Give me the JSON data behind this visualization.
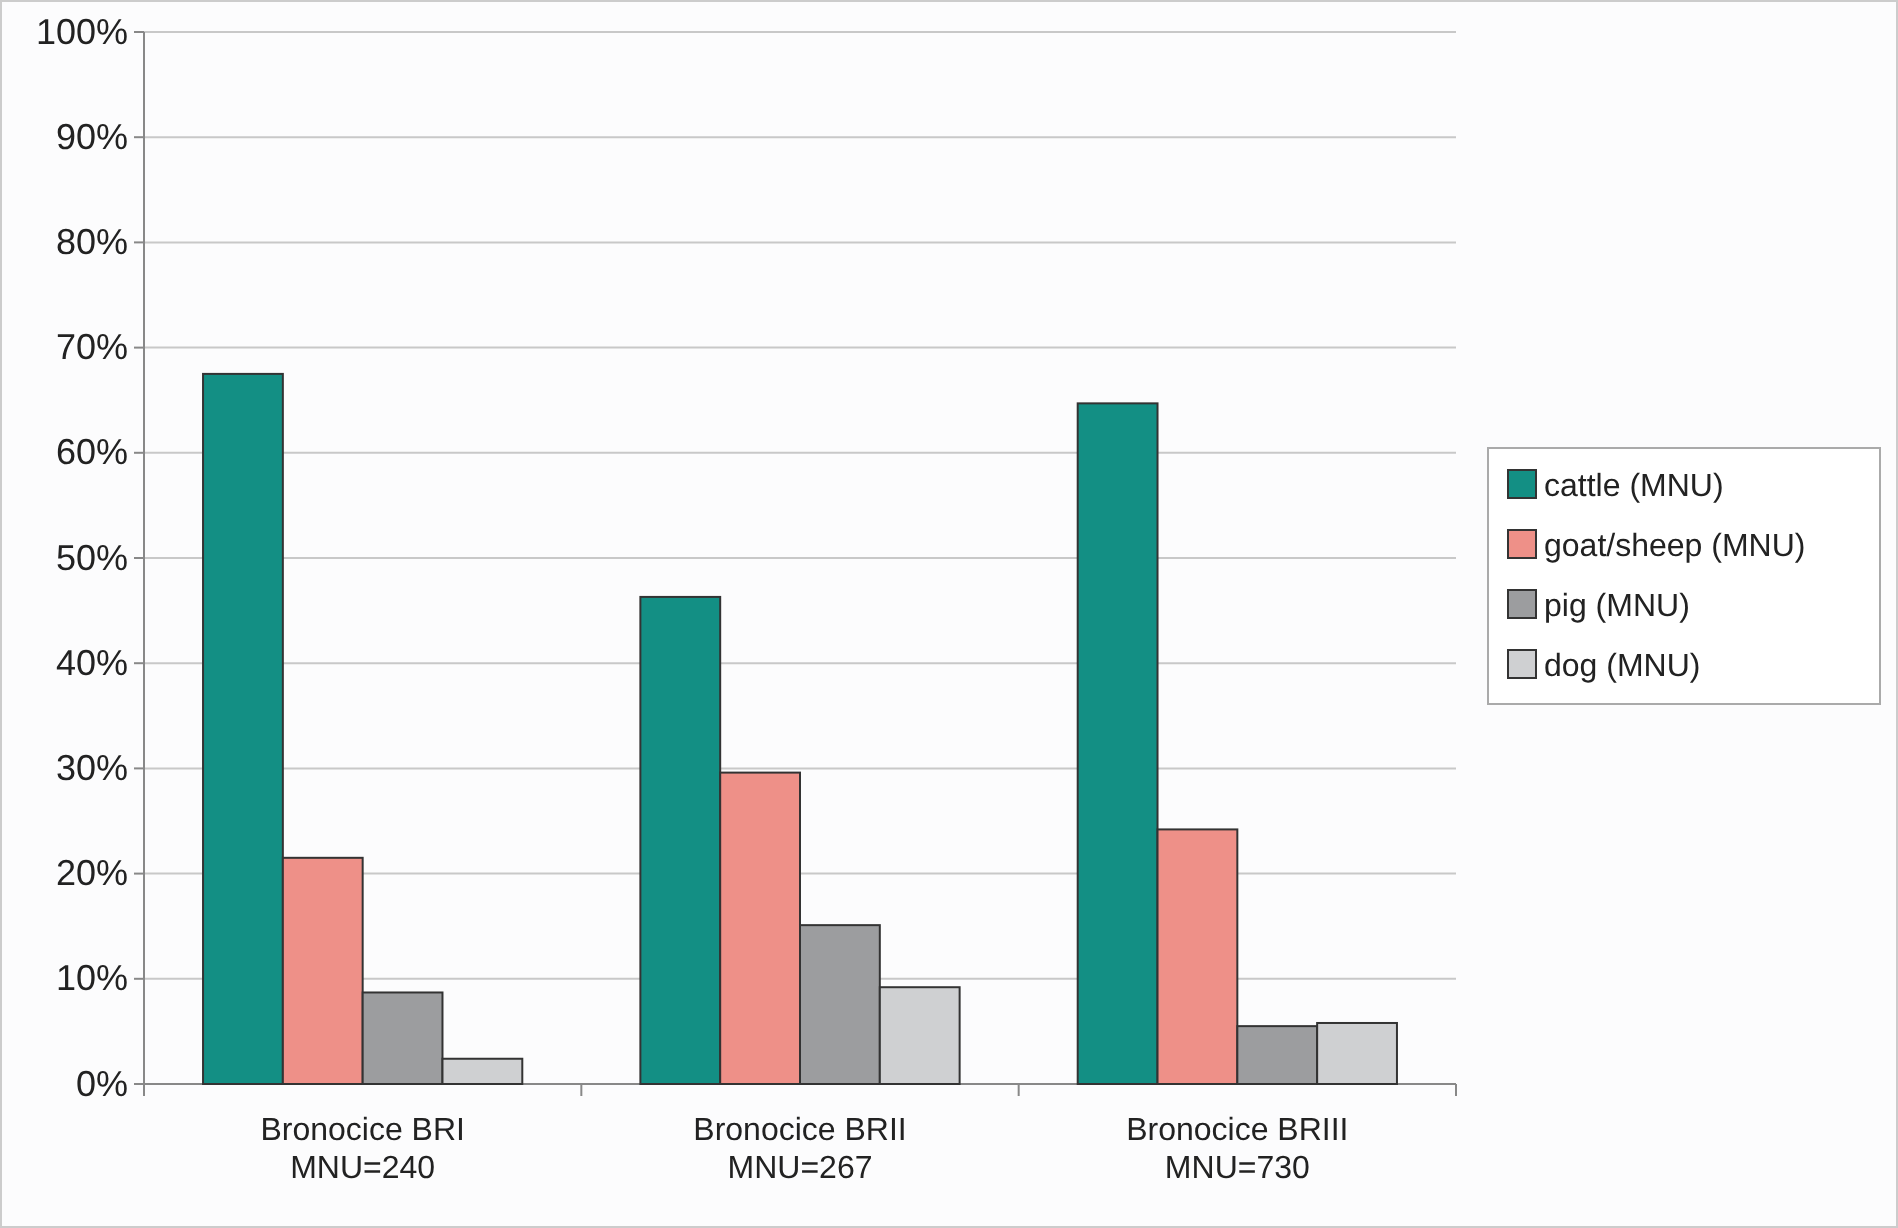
{
  "chart_data": {
    "type": "bar",
    "categories": [
      "Bronocice BRI\nMNU=240",
      "Bronocice BRII\nMNU=267",
      "Bronocice BRIII\nMNU=730"
    ],
    "series": [
      {
        "name": "cattle (MNU)",
        "color": "#138f84",
        "values": [
          67.5,
          46.3,
          64.7
        ]
      },
      {
        "name": "goat/sheep (MNU)",
        "color": "#ee9088",
        "values": [
          21.5,
          29.6,
          24.2
        ]
      },
      {
        "name": "pig (MNU)",
        "color": "#9c9d9f",
        "values": [
          8.7,
          15.1,
          5.5
        ]
      },
      {
        "name": "dog (MNU)",
        "color": "#cfd0d2",
        "values": [
          2.4,
          9.2,
          5.8
        ]
      }
    ],
    "ylim": [
      0,
      100
    ],
    "yticks": [
      {
        "value": 0,
        "label": "0%"
      },
      {
        "value": 10,
        "label": "10%"
      },
      {
        "value": 20,
        "label": "20%"
      },
      {
        "value": 30,
        "label": "30%"
      },
      {
        "value": 40,
        "label": "40%"
      },
      {
        "value": 50,
        "label": "50%"
      },
      {
        "value": 60,
        "label": "60%"
      },
      {
        "value": 70,
        "label": "70%"
      },
      {
        "value": 80,
        "label": "80%"
      },
      {
        "value": 90,
        "label": "90%"
      },
      {
        "value": 100,
        "label": "100%"
      }
    ],
    "grid": "y",
    "legend": "right"
  }
}
